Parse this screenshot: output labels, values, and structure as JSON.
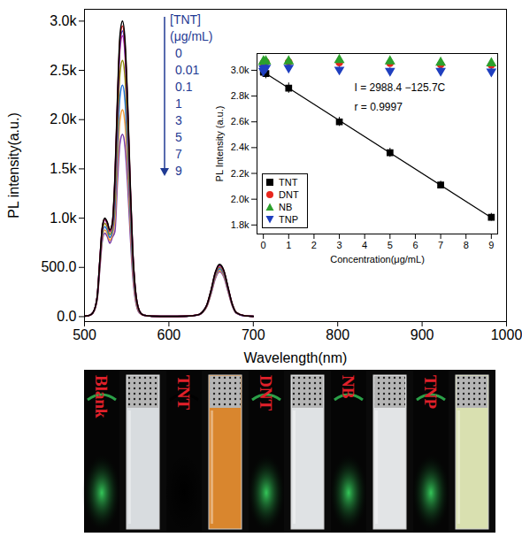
{
  "chart_data": [
    {
      "type": "line",
      "x_label": "Wavelength(nm)",
      "y_label": "PL intensity(a.u.)",
      "legend_title": [
        "[TNT]",
        "(μg/mL)"
      ],
      "legend": "top-left",
      "x": [
        500,
        505,
        510,
        515,
        518,
        521,
        524,
        527,
        530,
        533,
        536,
        539,
        542,
        545,
        548,
        551,
        554,
        557,
        560,
        565,
        570,
        580,
        600,
        620,
        635,
        640,
        645,
        650,
        655,
        660,
        665,
        670,
        675,
        680,
        690,
        700
      ],
      "xlim": [
        500,
        1000
      ],
      "xticks": [
        500,
        600,
        700,
        800,
        900,
        1000
      ],
      "ylim": [
        -50,
        3120
      ],
      "yticks": [
        {
          "value": 0,
          "label": "0.0"
        },
        {
          "value": 500,
          "label": "500.0"
        },
        {
          "value": 1000,
          "label": "1.0k"
        },
        {
          "value": 1500,
          "label": "1.5k"
        },
        {
          "value": 2000,
          "label": "2.0k"
        },
        {
          "value": 2500,
          "label": "2.5k"
        },
        {
          "value": 3000,
          "label": "3.0k"
        }
      ],
      "series": [
        {
          "name": "0",
          "color": "#000000",
          "values": [
            5,
            10,
            40,
            200,
            550,
            900,
            1000,
            960,
            880,
            950,
            1400,
            2200,
            2850,
            3000,
            2800,
            2200,
            1400,
            700,
            300,
            60,
            15,
            5,
            3,
            5,
            20,
            50,
            120,
            270,
            450,
            530,
            470,
            300,
            130,
            40,
            8,
            3
          ]
        },
        {
          "name": "0.01",
          "color": "#e41a1c",
          "values": [
            5,
            10,
            40,
            199,
            546,
            894,
            993,
            953,
            874,
            943,
            1376,
            2163,
            2802,
            2950,
            2752,
            2163,
            1376,
            688,
            295,
            59,
            15,
            5,
            3,
            5,
            20,
            50,
            119,
            268,
            446,
            525,
            466,
            297,
            129,
            40,
            8,
            3
          ]
        },
        {
          "name": "0.1",
          "color": "#2b3fd6",
          "values": [
            5,
            10,
            40,
            197,
            543,
            888,
            987,
            948,
            869,
            938,
            1354,
            2127,
            2756,
            2900,
            2708,
            2127,
            1354,
            677,
            290,
            58,
            15,
            5,
            3,
            5,
            20,
            49,
            118,
            265,
            441,
            520,
            461,
            294,
            128,
            39,
            8,
            3
          ]
        },
        {
          "name": "1",
          "color": "#c41fb8",
          "values": [
            5,
            10,
            40,
            196,
            539,
            882,
            980,
            941,
            862,
            931,
            1330,
            2090,
            2708,
            2850,
            2660,
            2090,
            1330,
            665,
            285,
            57,
            15,
            5,
            3,
            5,
            19,
            49,
            117,
            262,
            437,
            515,
            457,
            292,
            126,
            39,
            8,
            3
          ]
        },
        {
          "name": "3",
          "color": "#8c8c00",
          "values": [
            5,
            10,
            40,
            189,
            521,
            852,
            947,
            909,
            833,
            900,
            1213,
            1907,
            2470,
            2600,
            2427,
            1907,
            1213,
            607,
            260,
            52,
            15,
            5,
            3,
            5,
            19,
            47,
            113,
            255,
            424,
            500,
            443,
            283,
            123,
            38,
            8,
            3
          ]
        },
        {
          "name": "5",
          "color": "#1e6fd9",
          "values": [
            5,
            10,
            40,
            183,
            502,
            822,
            913,
            876,
            803,
            867,
            1097,
            1723,
            2232,
            2350,
            2193,
            1723,
            1097,
            548,
            235,
            47,
            15,
            5,
            3,
            5,
            18,
            46,
            110,
            247,
            412,
            485,
            430,
            275,
            119,
            37,
            8,
            3
          ]
        },
        {
          "name": "7",
          "color": "#f29b38",
          "values": [
            5,
            10,
            40,
            176,
            484,
            792,
            880,
            845,
            774,
            836,
            980,
            1540,
            1995,
            2100,
            1960,
            1540,
            980,
            490,
            210,
            42,
            15,
            5,
            3,
            5,
            18,
            44,
            106,
            239,
            399,
            470,
            417,
            266,
            115,
            35,
            8,
            3
          ]
        },
        {
          "name": "9",
          "color": "#7a3fa8",
          "values": [
            5,
            10,
            40,
            169,
            466,
            762,
            847,
            813,
            745,
            805,
            864,
            1357,
            1758,
            1850,
            1727,
            1357,
            864,
            432,
            185,
            37,
            15,
            5,
            3,
            5,
            17,
            43,
            103,
            232,
            386,
            455,
            403,
            257,
            112,
            34,
            8,
            3
          ]
        }
      ]
    },
    {
      "type": "scatter",
      "x_label": "Concentration(μg/mL)",
      "y_label": "PL Intensity (a.u.)",
      "legend": "bottom-left",
      "x": [
        0,
        0.01,
        0.1,
        1,
        3,
        5,
        7,
        9
      ],
      "xlim": [
        -0.25,
        9.25
      ],
      "xticks": [
        0,
        1,
        2,
        3,
        4,
        5,
        6,
        7,
        8,
        9
      ],
      "ylim": [
        1730,
        3130
      ],
      "yticks": [
        {
          "value": 1800,
          "label": "1.8k"
        },
        {
          "value": 2000,
          "label": "2.0k"
        },
        {
          "value": 2200,
          "label": "2.2k"
        },
        {
          "value": 2400,
          "label": "2.4k"
        },
        {
          "value": 2600,
          "label": "2.6k"
        },
        {
          "value": 2800,
          "label": "2.8k"
        },
        {
          "value": 3000,
          "label": "3.0k"
        }
      ],
      "series": [
        {
          "name": "TNT",
          "color": "#000000",
          "marker": "square",
          "values": [
            2990,
            2985,
            2975,
            2862,
            2600,
            2360,
            2110,
            1860
          ],
          "errors": [
            40,
            40,
            40,
            40,
            35,
            35,
            30,
            30
          ]
        },
        {
          "name": "DNT",
          "color": "#e8261c",
          "marker": "circle",
          "values": [
            3055,
            3060,
            3065,
            3065,
            3060,
            3055,
            3045,
            3040
          ],
          "errors": [
            15,
            15,
            15,
            15,
            15,
            15,
            15,
            15
          ]
        },
        {
          "name": "NB",
          "color": "#2ca02c",
          "marker": "triangle",
          "values": [
            3065,
            3070,
            3070,
            3070,
            3080,
            3070,
            3060,
            3055
          ],
          "errors": [
            10,
            10,
            10,
            10,
            10,
            10,
            10,
            10
          ]
        },
        {
          "name": "TNP",
          "color": "#1f3fbf",
          "marker": "triangle-down",
          "values": [
            2990,
            3010,
            3015,
            3015,
            3000,
            2990,
            2990,
            2985
          ],
          "errors": [
            30,
            30,
            30,
            30,
            30,
            30,
            30,
            30
          ]
        }
      ],
      "fit": {
        "series": "TNT",
        "color": "#000000",
        "intercept": 2988.4,
        "slope": -125.7,
        "x": [
          0,
          9
        ]
      },
      "annotations": [
        "I = 2988.4 −125.7C",
        "r = 0.9997"
      ]
    }
  ],
  "photo": {
    "samples": [
      {
        "label": "Blank",
        "fluorescence_color": "#34c759",
        "solution_color": "#d8dcdf"
      },
      {
        "label": "TNT",
        "fluorescence_color": "#000000",
        "solution_color": "#d9862e"
      },
      {
        "label": "DNT",
        "fluorescence_color": "#34c759",
        "solution_color": "#dfe2e4"
      },
      {
        "label": "NB",
        "fluorescence_color": "#34c759",
        "solution_color": "#e2e4e6"
      },
      {
        "label": "TNP",
        "fluorescence_color": "#34c759",
        "solution_color": "#d9e0b0"
      }
    ]
  }
}
